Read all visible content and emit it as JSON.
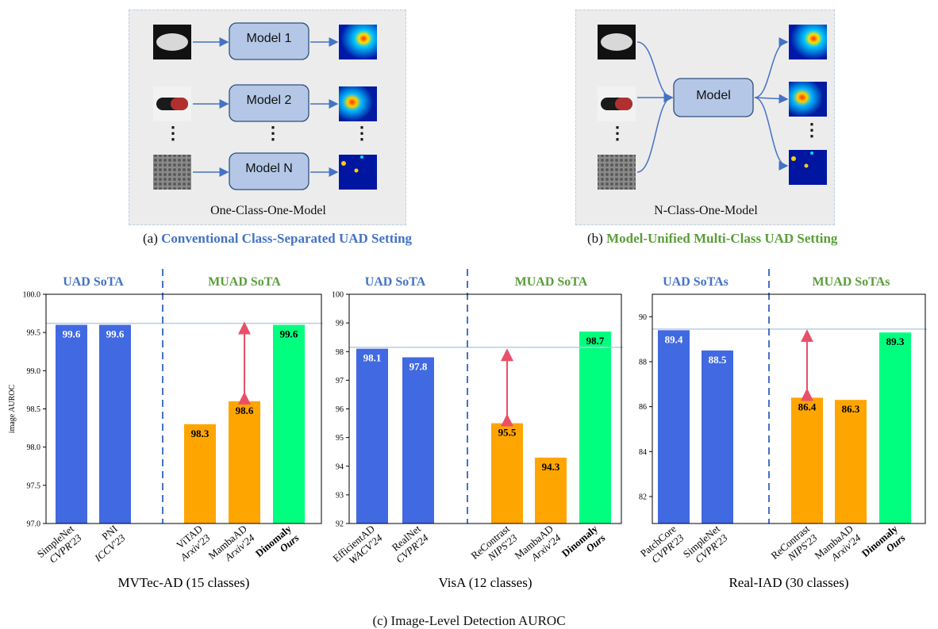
{
  "top": {
    "panel_a": {
      "models": [
        "Model 1",
        "Model 2",
        "Model N"
      ],
      "dots": "⋮",
      "label": "One-Class-One-Model",
      "caption_prefix": "(a)",
      "caption_text": "Conventional Class-Separated UAD Setting"
    },
    "panel_b": {
      "model": "Model",
      "dots": "⋮",
      "label": "N-Class-One-Model",
      "caption_prefix": "(b)",
      "caption_text": "Model-Unified Multi-Class UAD Setting"
    }
  },
  "colors": {
    "uad_blue": "#4169e1",
    "muad_orange": "#ffa500",
    "ours_green": "#00ff7f",
    "arrow_red": "#e8506a",
    "divider_blue": "#4472c4"
  },
  "chart_data": [
    {
      "type": "bar",
      "title": "MVTec-AD (15 classes)",
      "ylabel": "image AUROC",
      "ylim": [
        97.0,
        100.0
      ],
      "yticks": [
        "97.0",
        "97.5",
        "98.0",
        "98.5",
        "99.0",
        "99.5",
        "100.0"
      ],
      "group_labels": [
        "UAD SoTA",
        "MUAD SoTA"
      ],
      "reference_line": 99.62,
      "bars": [
        {
          "name": "SimpleNet",
          "venue": "CVPR'23",
          "value": 99.6,
          "label": "99.6",
          "kind": "uad"
        },
        {
          "name": "PNI",
          "venue": "ICCV'23",
          "value": 99.6,
          "label": "99.6",
          "kind": "uad"
        },
        {
          "name": "ViTAD",
          "venue": "Arxiv'23",
          "value": 98.3,
          "label": "98.3",
          "kind": "muad"
        },
        {
          "name": "MambaAD",
          "venue": "Arxiv'24",
          "value": 98.6,
          "label": "98.6",
          "kind": "muad"
        },
        {
          "name": "Dinomaly",
          "venue": "Ours",
          "value": 99.6,
          "label": "99.6",
          "kind": "ours"
        }
      ],
      "gap_arrow": [
        98.6,
        99.6
      ]
    },
    {
      "type": "bar",
      "title": "VisA (12 classes)",
      "ylabel": "",
      "ylim": [
        92,
        100
      ],
      "yticks": [
        "92",
        "93",
        "94",
        "95",
        "96",
        "97",
        "98",
        "99",
        "100"
      ],
      "group_labels": [
        "UAD SoTA",
        "MUAD SoTA"
      ],
      "reference_line": 98.15,
      "bars": [
        {
          "name": "EfficientAD",
          "venue": "WACV'24",
          "value": 98.1,
          "label": "98.1",
          "kind": "uad"
        },
        {
          "name": "RealNet",
          "venue": "CVPR'24",
          "value": 97.8,
          "label": "97.8",
          "kind": "uad"
        },
        {
          "name": "ReContrast",
          "venue": "NIPS'23",
          "value": 95.5,
          "label": "95.5",
          "kind": "muad"
        },
        {
          "name": "MambaAD",
          "venue": "Arxiv'24",
          "value": 94.3,
          "label": "94.3",
          "kind": "muad"
        },
        {
          "name": "Dinomaly",
          "venue": "Ours",
          "value": 98.7,
          "label": "98.7",
          "kind": "ours"
        }
      ],
      "gap_arrow": [
        95.5,
        98.0
      ]
    },
    {
      "type": "bar",
      "title": "Real-IAD (30 classes)",
      "ylabel": "",
      "ylim": [
        80.8,
        91.0
      ],
      "yticks": [
        "82",
        "84",
        "86",
        "88",
        "90"
      ],
      "group_labels": [
        "UAD SoTAs",
        "MUAD SoTAs"
      ],
      "reference_line": 89.45,
      "bars": [
        {
          "name": "PatchCore",
          "venue": "CVPR'23",
          "value": 89.4,
          "label": "89.4",
          "kind": "uad"
        },
        {
          "name": "SimpleNet",
          "venue": "CVPR'23",
          "value": 88.5,
          "label": "88.5",
          "kind": "uad"
        },
        {
          "name": "ReContrast",
          "venue": "NIPS'23",
          "value": 86.4,
          "label": "86.4",
          "kind": "muad"
        },
        {
          "name": "MambaAD",
          "venue": "Arxiv'24",
          "value": 86.3,
          "label": "86.3",
          "kind": "muad"
        },
        {
          "name": "Dinomaly",
          "venue": "Ours",
          "value": 89.3,
          "label": "89.3",
          "kind": "ours"
        }
      ],
      "gap_arrow": [
        86.4,
        89.3
      ]
    }
  ],
  "bottom_caption": "(c) Image-Level Detection AUROC"
}
